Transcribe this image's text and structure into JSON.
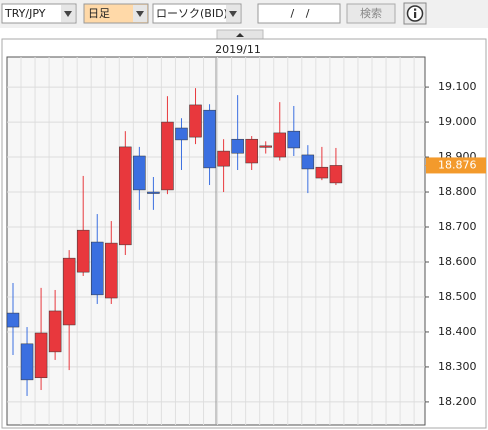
{
  "toolbar": {
    "symbol": "TRY/JPY",
    "period": "日足",
    "chart_style": "ローソク(BID)",
    "date": "/ /",
    "search": "検索"
  },
  "chart_data": {
    "type": "candlestick",
    "period_label": "2019/11",
    "categories": [
      null,
      null,
      null,
      null,
      null,
      null,
      null,
      null,
      null,
      null,
      null,
      null,
      null,
      null,
      null,
      null,
      null,
      null,
      null,
      null,
      null,
      null,
      null,
      null
    ],
    "open": [
      18.454,
      18.366,
      18.269,
      18.343,
      18.42,
      18.571,
      18.657,
      18.497,
      18.649,
      18.903,
      18.8,
      18.806,
      18.983,
      18.957,
      19.034,
      18.874,
      18.951,
      18.883,
      18.929,
      18.9,
      18.974,
      18.906,
      18.84,
      18.826
    ],
    "high": [
      18.54,
      18.414,
      18.526,
      18.52,
      18.634,
      18.846,
      18.737,
      18.717,
      18.974,
      18.929,
      18.843,
      19.074,
      19.011,
      19.097,
      19.051,
      18.951,
      19.077,
      18.96,
      18.945,
      19.057,
      19.046,
      18.934,
      18.929,
      18.926
    ],
    "low": [
      18.334,
      18.217,
      18.234,
      18.32,
      18.291,
      18.56,
      18.48,
      18.48,
      18.62,
      18.749,
      18.749,
      18.794,
      18.863,
      18.937,
      18.82,
      18.8,
      18.863,
      18.863,
      18.91,
      18.89,
      18.903,
      18.797,
      18.834,
      18.82
    ],
    "close": [
      18.414,
      18.263,
      18.397,
      18.46,
      18.611,
      18.691,
      18.506,
      18.654,
      18.929,
      18.806,
      18.797,
      19.0,
      18.949,
      19.049,
      18.869,
      18.917,
      18.911,
      18.951,
      18.932,
      18.969,
      18.926,
      18.866,
      18.871,
      18.876
    ],
    "up_color": "#e8383d",
    "down_color": "#3b6fe0",
    "ylim": [
      18.134,
      19.186
    ],
    "yticks": [
      {
        "value": 18.2,
        "label": "18.200"
      },
      {
        "value": 18.3,
        "label": "18.300"
      },
      {
        "value": 18.4,
        "label": "18.400"
      },
      {
        "value": 18.5,
        "label": "18.500"
      },
      {
        "value": 18.6,
        "label": "18.600"
      },
      {
        "value": 18.7,
        "label": "18.700"
      },
      {
        "value": 18.8,
        "label": "18.800"
      },
      {
        "value": 18.9,
        "label": "18.900"
      },
      {
        "value": 19.0,
        "label": "19.000"
      },
      {
        "value": 19.1,
        "label": "19.100"
      }
    ],
    "current_price": {
      "value": 18.876,
      "label": "18.876"
    },
    "grid": true
  }
}
